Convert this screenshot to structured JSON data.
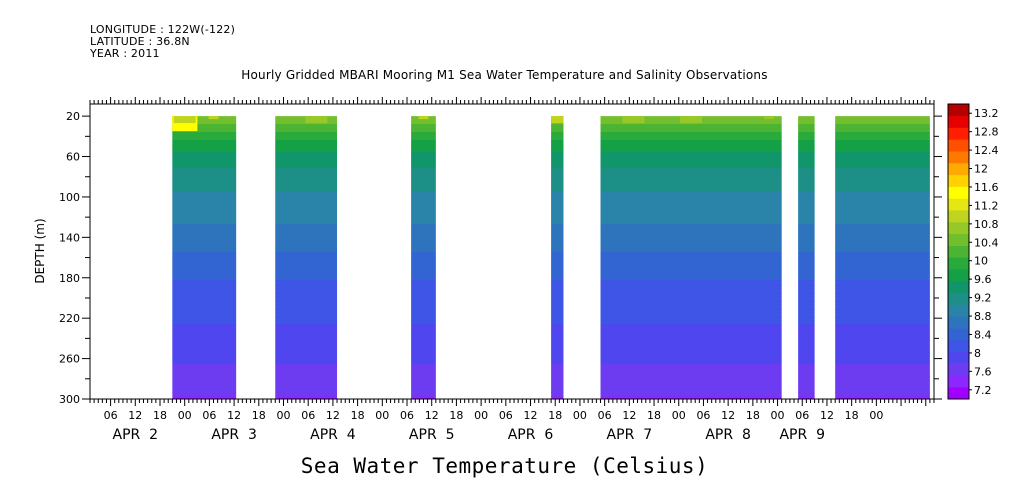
{
  "header": {
    "longitude": "LONGITUDE : 122W(-122)",
    "latitude": "LATITUDE : 36.8N",
    "year": "YEAR : 2011",
    "title": "Hourly Gridded MBARI Mooring M1 Sea Water Temperature and Salinity Observations"
  },
  "bottom_title": "Sea Water Temperature (Celsius)",
  "colors": {
    "colorbar": [
      "#a000ff",
      "#8c28ff",
      "#6e3cf0",
      "#5046ef",
      "#3e55e6",
      "#3264d2",
      "#2d74bd",
      "#2a83a8",
      "#1d8f87",
      "#10966a",
      "#14a046",
      "#28aa3c",
      "#4bb432",
      "#73be2d",
      "#96c828",
      "#bed41e",
      "#e6e614",
      "#ffff00",
      "#ffd200",
      "#ffaa00",
      "#ff7800",
      "#ff5000",
      "#ff1e00",
      "#e60000",
      "#b40000"
    ]
  },
  "chart_data": {
    "type": "heatmap",
    "title": "Hourly Gridded MBARI Mooring M1 Sea Water Temperature and Salinity Observations",
    "ylabel": "DEPTH (m)",
    "xlabel": "",
    "ylim": [
      300,
      8
    ],
    "yticks": [
      "20",
      "60",
      "100",
      "140",
      "180",
      "220",
      "260",
      "300"
    ],
    "ytick_values": [
      20,
      60,
      100,
      140,
      180,
      220,
      260,
      300
    ],
    "x_hour_labels": [
      "06",
      "12",
      "18",
      "00",
      "06",
      "12",
      "18",
      "00",
      "06",
      "12",
      "18",
      "00",
      "06",
      "12",
      "18",
      "00",
      "06",
      "12",
      "18",
      "00",
      "06",
      "12",
      "18",
      "00",
      "06",
      "12",
      "18",
      "00",
      "06",
      "12",
      "18",
      "00"
    ],
    "x_hour_values": [
      30,
      36,
      42,
      48,
      54,
      60,
      66,
      72,
      78,
      84,
      90,
      96,
      102,
      108,
      114,
      120,
      126,
      132,
      138,
      144,
      150,
      156,
      162,
      168,
      174,
      180,
      186,
      192,
      198,
      204,
      210,
      216
    ],
    "x_day_labels": [
      "APR  2",
      "APR  3",
      "APR  4",
      "APR  5",
      "APR  6",
      "APR  7",
      "APR  8",
      "APR  9"
    ],
    "x_day_values": [
      36,
      60,
      84,
      108,
      132,
      156,
      180,
      198
    ],
    "xlim": [
      25,
      230
    ],
    "colorbar_labels": [
      "7.2",
      "7.6",
      "8",
      "8.4",
      "8.8",
      "9.2",
      "9.6",
      "10",
      "10.4",
      "10.8",
      "11.2",
      "11.6",
      "12",
      "12.4",
      "12.8",
      "13.2"
    ],
    "colorbar_values": [
      7.2,
      7.6,
      8.0,
      8.4,
      8.8,
      9.2,
      9.6,
      10.0,
      10.4,
      10.8,
      11.2,
      11.6,
      12.0,
      12.4,
      12.8,
      13.2
    ],
    "colorbar_range": [
      7.0,
      13.4
    ],
    "data_segments": [
      [
        45,
        60.5
      ],
      [
        70,
        85
      ],
      [
        103,
        109
      ],
      [
        137,
        140
      ],
      [
        149,
        193
      ],
      [
        197,
        201
      ],
      [
        206,
        229
      ]
    ],
    "profile_depths": [
      20,
      40,
      60,
      80,
      100,
      140,
      180,
      220,
      260,
      300
    ],
    "profile_temps": [
      10.6,
      9.9,
      9.5,
      9.2,
      9.0,
      8.7,
      8.3,
      8.05,
      7.8,
      7.5
    ],
    "surface_warm_patches": [
      {
        "x": 45.5,
        "temp": 12.6
      },
      {
        "x": 48,
        "temp": 11.4
      },
      {
        "x": 55,
        "temp": 11.0
      },
      {
        "x": 80,
        "temp": 11.2
      },
      {
        "x": 106,
        "temp": 11.0
      },
      {
        "x": 138,
        "temp": 11.4
      },
      {
        "x": 157,
        "temp": 11.1
      },
      {
        "x": 171,
        "temp": 11.2
      },
      {
        "x": 190,
        "temp": 10.8
      }
    ]
  }
}
